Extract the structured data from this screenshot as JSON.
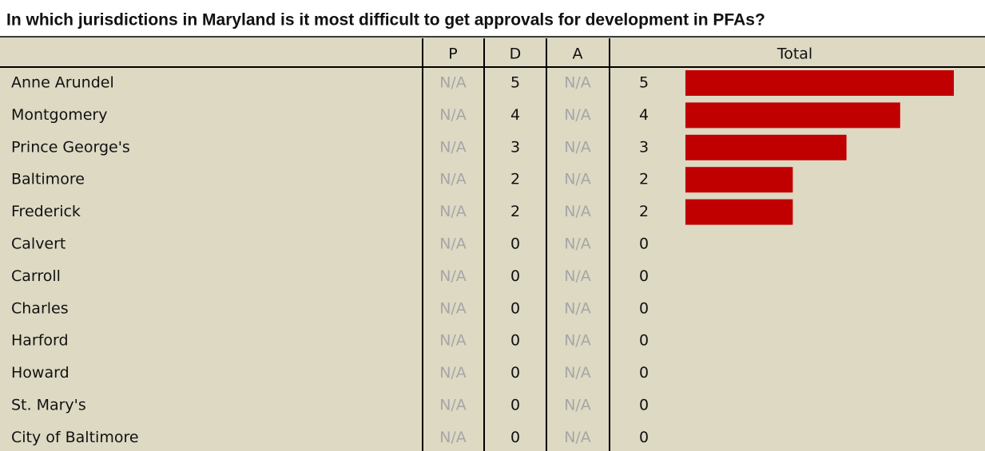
{
  "title": "In which jurisdictions in Maryland is it most difficult to get approvals for development in PFAs?",
  "table": {
    "columns": [
      "P",
      "D",
      "A",
      "Total"
    ],
    "rows": [
      [
        "Anne Arundel",
        "N/A",
        5,
        "N/A",
        5
      ],
      [
        "Montgomery",
        "N/A",
        4,
        "N/A",
        4
      ],
      [
        "Prince George's",
        "N/A",
        3,
        "N/A",
        3
      ],
      [
        "Baltimore",
        "N/A",
        2,
        "N/A",
        2
      ],
      [
        "Frederick",
        "N/A",
        2,
        "N/A",
        2
      ],
      [
        "Calvert",
        "N/A",
        0,
        "N/A",
        0
      ],
      [
        "Carroll",
        "N/A",
        0,
        "N/A",
        0
      ],
      [
        "Charles",
        "N/A",
        0,
        "N/A",
        0
      ],
      [
        "Harford",
        "N/A",
        0,
        "N/A",
        0
      ],
      [
        "Howard",
        "N/A",
        0,
        "N/A",
        0
      ],
      [
        "St. Mary's",
        "N/A",
        0,
        "N/A",
        0
      ],
      [
        "City of Baltimore",
        "N/A",
        0,
        "N/A",
        0
      ]
    ],
    "bar_color": "#c00000"
  }
}
